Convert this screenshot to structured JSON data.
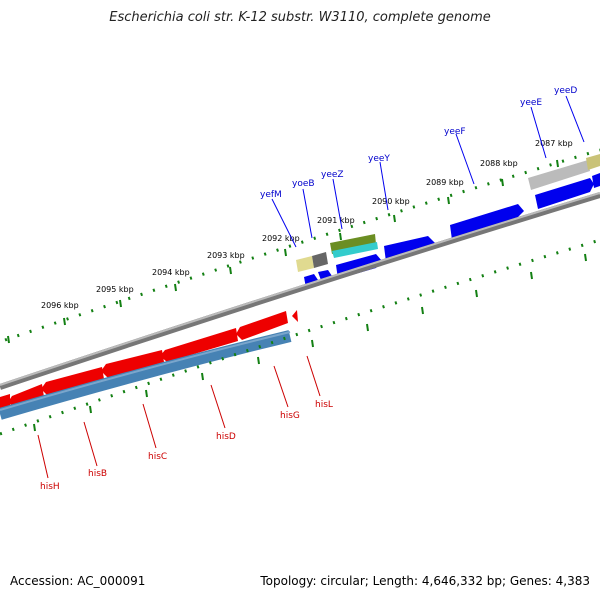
{
  "title": "Escherichia coli str. K-12 substr. W3110, complete genome",
  "footer": {
    "accession": "Accession: AC_000091",
    "summary": "Topology: circular; Length: 4,646,332 bp; Genes: 4,383"
  },
  "colors": {
    "forward_gene": "#0000ee",
    "reverse_gene": "#ee0000",
    "reverse_cds": "#4682b4",
    "tick": "#138013",
    "backbone": "#808080"
  },
  "kbp_labels": [
    "2087 kbp",
    "2088 kbp",
    "2089 kbp",
    "2090 kbp",
    "2091 kbp",
    "2092 kbp",
    "2093 kbp",
    "2094 kbp",
    "2095 kbp",
    "2096 kbp"
  ],
  "upper_genes": [
    "yeeD",
    "yeeE",
    "yeeF",
    "yeeY",
    "yeeZ",
    "yoeB",
    "yefM"
  ],
  "lower_genes": [
    "hisL",
    "hisG",
    "hisD",
    "hisC",
    "hisB",
    "hisH"
  ]
}
